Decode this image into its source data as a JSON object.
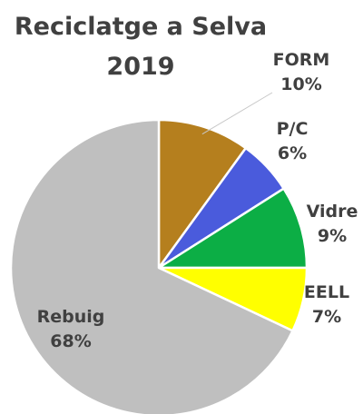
{
  "chart_data": {
    "type": "pie",
    "title_lines": [
      "Reciclatge a Selva",
      "2019"
    ],
    "slices": [
      {
        "name": "FORM",
        "value": 10,
        "label": "10%",
        "color": "#B57F1E"
      },
      {
        "name": "P/C",
        "value": 6,
        "label": "6%",
        "color": "#4A5BDC"
      },
      {
        "name": "Vidre",
        "value": 9,
        "label": "9%",
        "color": "#0CAE45"
      },
      {
        "name": "EELL",
        "value": 7,
        "label": "7%",
        "color": "#FFFF00"
      },
      {
        "name": "Rebuig",
        "value": 68,
        "label": "68%",
        "color": "#BFBFBF"
      }
    ],
    "start_angle_deg": 0,
    "direction": "clockwise",
    "legend": "none"
  }
}
